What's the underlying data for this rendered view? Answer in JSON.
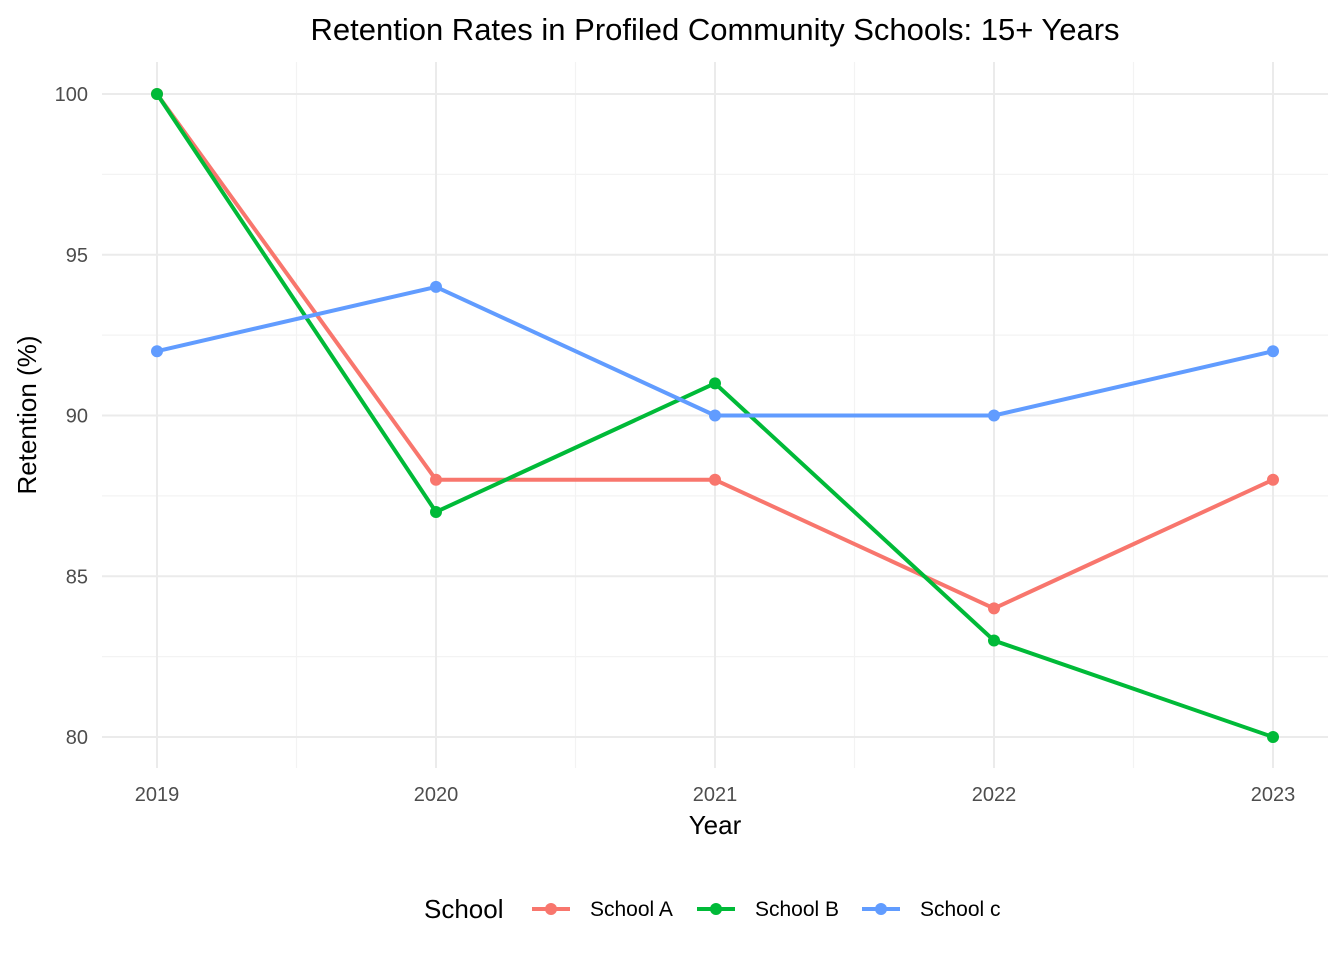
{
  "chart_data": {
    "type": "line",
    "title": "Retention Rates in Profiled Community Schools: 15+ Years",
    "xlabel": "Year",
    "ylabel": "Retention (%)",
    "x": [
      2019,
      2020,
      2021,
      2022,
      2023
    ],
    "x_tick_labels": [
      "2019",
      "2020",
      "2021",
      "2022",
      "2023"
    ],
    "y_ticks": [
      80,
      85,
      90,
      95,
      100
    ],
    "y_tick_labels": [
      "80",
      "85",
      "90",
      "95",
      "100"
    ],
    "ylim": [
      79,
      101
    ],
    "grid": true,
    "legend": {
      "title": "School",
      "position": "bottom"
    },
    "series": [
      {
        "name": "School A",
        "color": "#F8766D",
        "values": [
          100,
          88,
          88,
          84,
          88
        ]
      },
      {
        "name": "School B",
        "color": "#00BA38",
        "values": [
          100,
          87,
          91,
          83,
          80
        ]
      },
      {
        "name": "School c",
        "color": "#619CFF",
        "values": [
          92,
          94,
          90,
          90,
          92
        ]
      }
    ]
  }
}
